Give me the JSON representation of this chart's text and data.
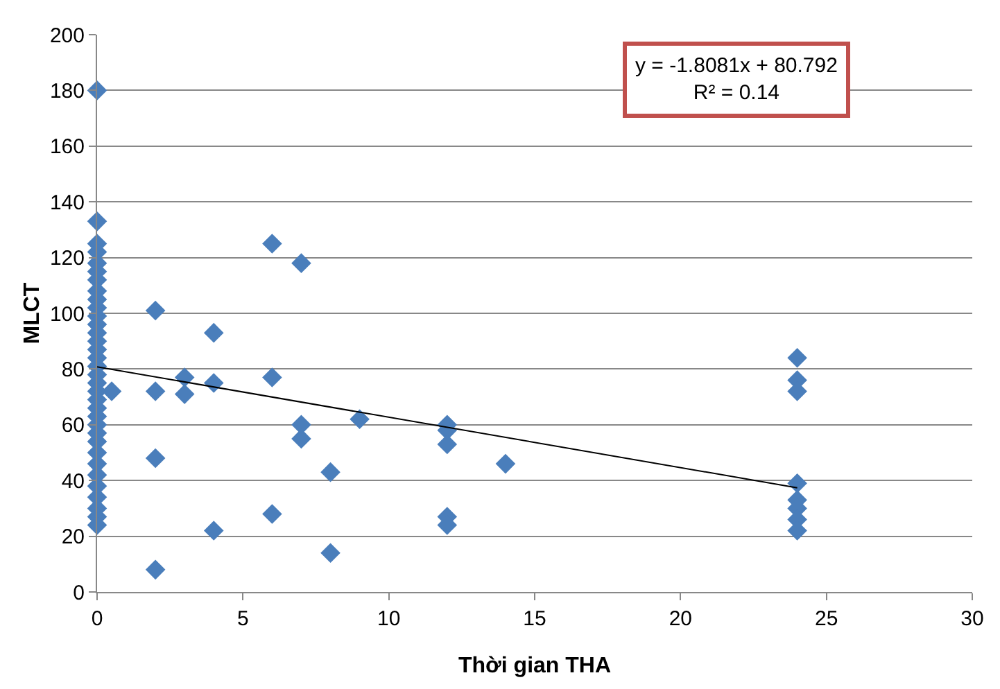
{
  "chart_data": {
    "type": "scatter",
    "xlabel": "Thời gian THA",
    "ylabel": "MLCT",
    "xlim": [
      0,
      30
    ],
    "xticks": [
      0,
      5,
      10,
      15,
      20,
      25,
      30
    ],
    "ylim": [
      0,
      200
    ],
    "yticks": [
      0,
      20,
      40,
      60,
      80,
      100,
      120,
      140,
      160,
      180,
      200
    ],
    "grid": "y",
    "marker": "diamond",
    "annotations": [
      "y = -1.8081x + 80.792\nR² = 0.14"
    ],
    "series": [
      {
        "color": "#4a7ebb",
        "x": [
          0,
          0,
          0,
          0,
          0,
          0,
          0,
          0,
          0,
          0,
          0,
          0,
          0,
          0,
          0,
          0,
          0,
          0,
          0,
          0,
          0,
          0,
          0,
          0,
          0,
          0,
          0,
          0,
          0,
          0,
          0,
          0,
          0,
          0,
          0.5,
          2,
          2,
          2,
          2,
          3,
          3,
          4,
          4,
          4,
          6,
          6,
          6,
          7,
          7,
          7,
          8,
          8,
          9,
          12,
          12,
          12,
          12,
          12,
          14,
          24,
          24,
          24,
          24,
          24,
          24,
          24,
          24
        ],
        "values": [
          180,
          133,
          125,
          122,
          118,
          115,
          112,
          108,
          105,
          102,
          99,
          96,
          93,
          90,
          87,
          84,
          81,
          78,
          75,
          72,
          69,
          66,
          63,
          60,
          57,
          54,
          50,
          46,
          42,
          38,
          34,
          30,
          27,
          24,
          72,
          101,
          72,
          48,
          8,
          77,
          71,
          93,
          75,
          22,
          125,
          77,
          28,
          118,
          60,
          55,
          43,
          14,
          62,
          60,
          58,
          53,
          27,
          24,
          46,
          84,
          76,
          72,
          39,
          33,
          30,
          26,
          22
        ]
      },
      {
        "type": "line",
        "color": "#000000",
        "marker": "none",
        "line_style": "solid",
        "x": [
          0,
          24
        ],
        "values": [
          80.8,
          37.4
        ]
      }
    ]
  }
}
